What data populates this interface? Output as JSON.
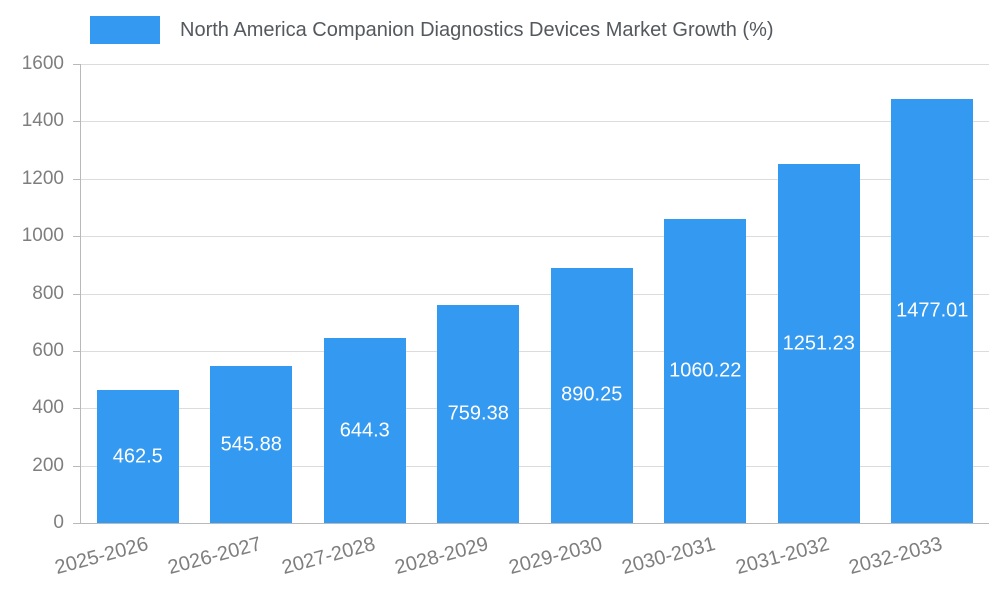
{
  "legend": {
    "title": "North America Companion Diagnostics Devices Market Growth (%)"
  },
  "chart_data": {
    "type": "bar",
    "title": "North America Companion Diagnostics Devices Market Growth (%)",
    "categories": [
      "2025-2026",
      "2026-2027",
      "2027-2028",
      "2028-2029",
      "2029-2030",
      "2030-2031",
      "2031-2032",
      "2032-2033"
    ],
    "values": [
      462.5,
      545.88,
      644.3,
      759.38,
      890.25,
      1060.22,
      1251.23,
      1477.01
    ],
    "value_labels": [
      "462.5",
      "545.88",
      "644.3",
      "759.38",
      "890.25",
      "1060.22",
      "1251.23",
      "1477.01"
    ],
    "xlabel": "",
    "ylabel": "",
    "ylim": [
      0,
      1600
    ],
    "y_ticks": [
      0,
      200,
      400,
      600,
      800,
      1000,
      1200,
      1400,
      1600
    ],
    "grid": true,
    "legend_position": "top-left",
    "colors": {
      "bar": "#3499F0",
      "grid": "#DCDCDC",
      "axis": "#B9B9B9",
      "tick_label": "#7E7E7E",
      "value_label": "#FFFFFF",
      "legend_text": "#54595E"
    }
  }
}
